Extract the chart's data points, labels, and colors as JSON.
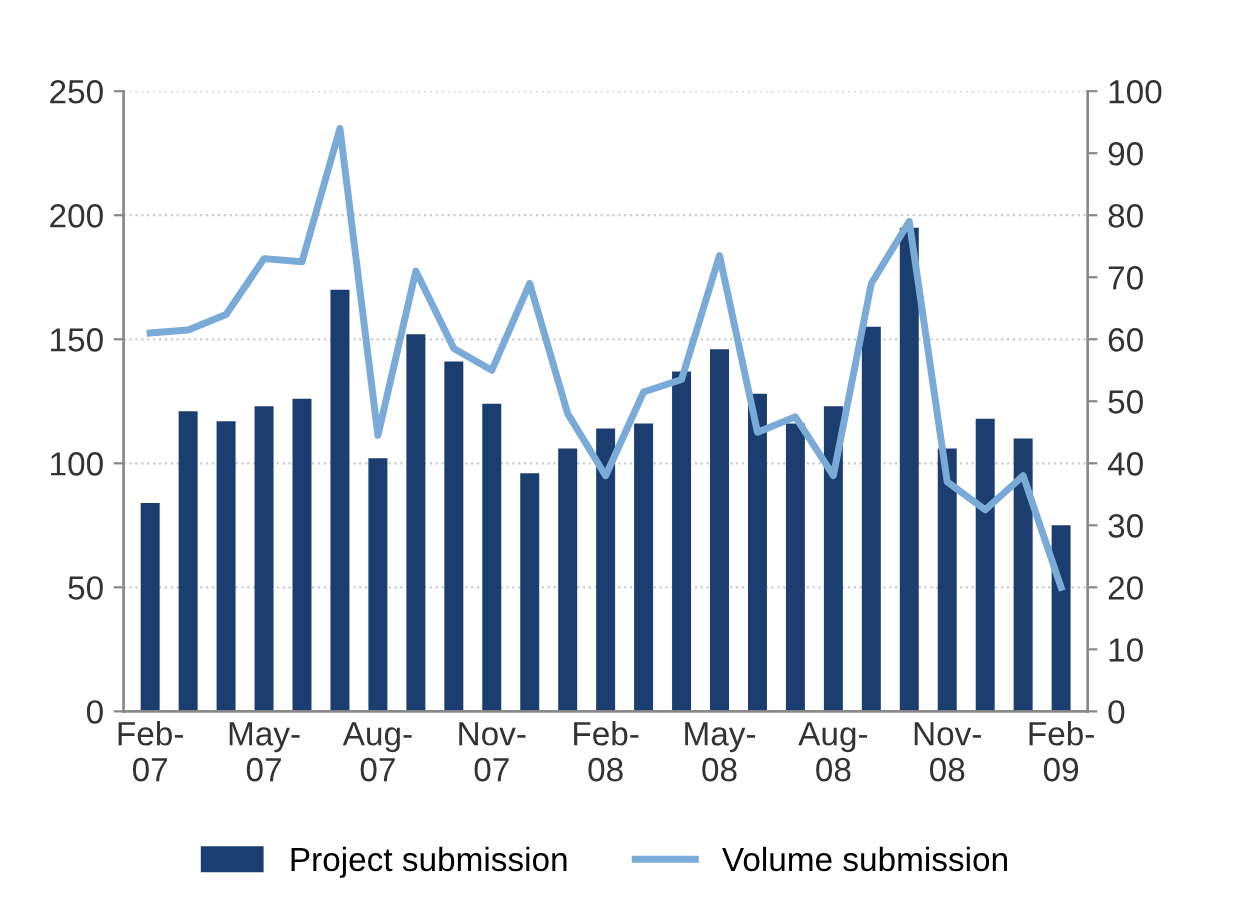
{
  "chart_data": {
    "type": "bar",
    "categories": [
      "Feb-\n07",
      null,
      null,
      "May-\n07",
      null,
      null,
      "Aug-\n07",
      null,
      null,
      "Nov-\n07",
      null,
      null,
      "Feb-\n08",
      null,
      null,
      "May-\n08",
      null,
      null,
      "Aug-\n08",
      null,
      null,
      "Nov-\n08",
      null,
      null,
      "Feb-\n09"
    ],
    "series": [
      {
        "name": "Project submission",
        "color": "#1b3d6f",
        "values": [
          84,
          121,
          117,
          123,
          126,
          170,
          102,
          152,
          141,
          124,
          96,
          106,
          114,
          116,
          137,
          146,
          128,
          116,
          123,
          155,
          195,
          106,
          118,
          110,
          75
        ]
      },
      {
        "name": "Volume submission",
        "type": "line",
        "axis": "y2",
        "color": "#7aaad8",
        "values": [
          61,
          61.5,
          64,
          73,
          72.5,
          94,
          44.5,
          71,
          58.5,
          55,
          69,
          48,
          38,
          51.5,
          53.5,
          73.5,
          45,
          47.5,
          38,
          69,
          79,
          37,
          32.5,
          38,
          20
        ]
      }
    ],
    "ylim": [
      0,
      250
    ],
    "yticks": [
      0,
      50,
      100,
      150,
      200,
      250
    ],
    "y2lim": [
      0,
      100
    ],
    "y2ticks": [
      0,
      10,
      20,
      30,
      40,
      50,
      60,
      70,
      80,
      90,
      100
    ],
    "grid": "y",
    "legend": "bottom",
    "marker": "none",
    "line_style": "solid"
  }
}
